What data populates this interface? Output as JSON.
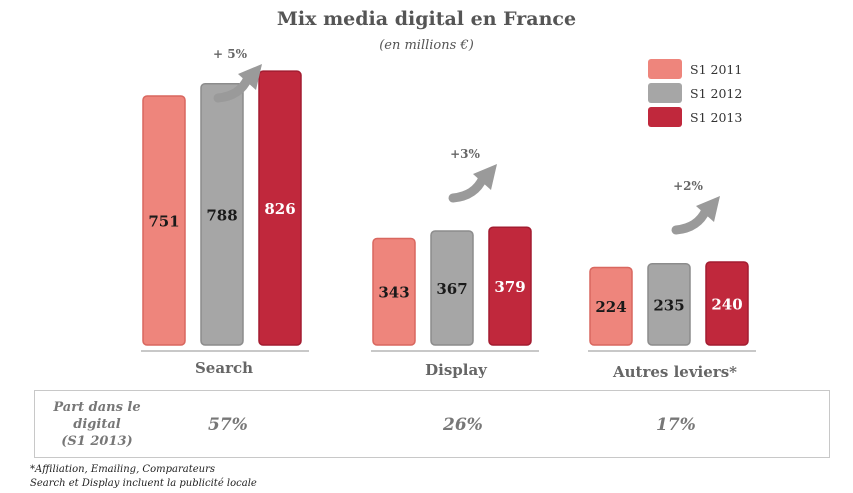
{
  "chart_data": {
    "type": "bar",
    "title": "Mix media digital en France",
    "subtitle": "(en millions €)",
    "categories": [
      "Search",
      "Display",
      "Autres leviers*"
    ],
    "series": [
      {
        "name": "S1 2011",
        "color": "#ee857c",
        "values": [
          751,
          343,
          224
        ]
      },
      {
        "name": "S1 2012",
        "color": "#a6a6a6",
        "values": [
          788,
          367,
          235
        ]
      },
      {
        "name": "S1 2013",
        "color": "#c0283c",
        "values": [
          826,
          379,
          240
        ]
      }
    ],
    "value_labels": [
      [
        "751",
        "788",
        "826"
      ],
      [
        "343",
        "367",
        "379"
      ],
      [
        "224",
        "235",
        "240"
      ]
    ],
    "growth_labels": [
      "+ 5%",
      "+3%",
      "+2%"
    ],
    "legend_position": "top-right",
    "grid": false
  },
  "share": {
    "label": "Part dans le\ndigital\n(S1 2013)",
    "values": [
      "57%",
      "26%",
      "17%"
    ]
  },
  "footnotes": [
    "*Affiliation, Emailing, Comparateurs",
    "Search et Display incluent la publicité locale"
  ]
}
